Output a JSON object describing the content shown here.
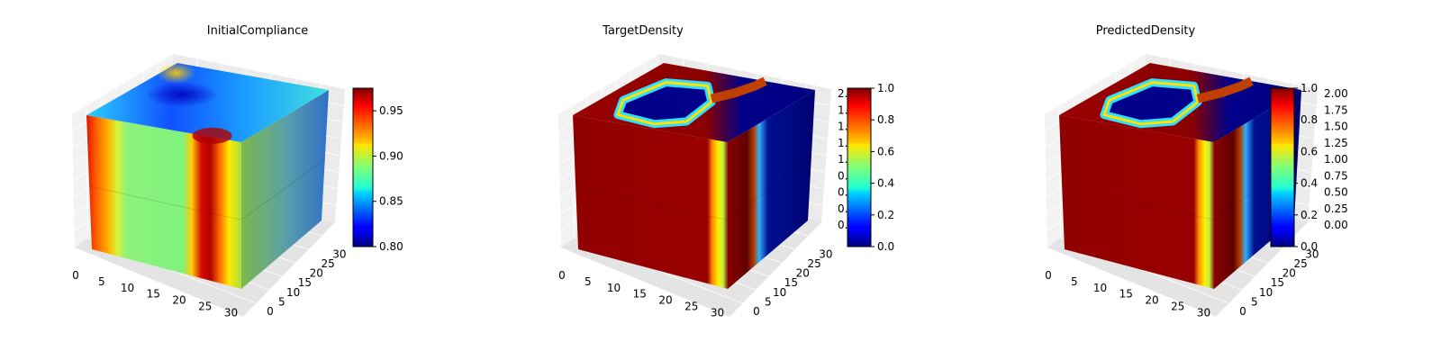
{
  "chart_data": [
    {
      "type": "voxels-3d",
      "title": "InitialCompliance",
      "xlabel": "",
      "ylabel": "",
      "zlabel": "",
      "x_ticks": [
        "0",
        "5",
        "10",
        "15",
        "20",
        "25",
        "30"
      ],
      "y_ticks": [
        "0",
        "5",
        "10",
        "15",
        "20",
        "25",
        "30"
      ],
      "z_ticks": [],
      "xlim": [
        0,
        32
      ],
      "ylim": [
        0,
        32
      ],
      "zlim": [
        0,
        2
      ],
      "field": "compliance",
      "colormap": "jet",
      "colorbar": {
        "min": 0.8,
        "max": 0.975,
        "ticks": [
          "0.80",
          "0.85",
          "0.90",
          "0.95"
        ]
      },
      "grid": true
    },
    {
      "type": "voxels-3d",
      "title": "TargetDensity",
      "xlabel": "",
      "ylabel": "",
      "zlabel": "",
      "x_ticks": [
        "0",
        "5",
        "10",
        "15",
        "20",
        "25",
        "30"
      ],
      "y_ticks": [
        "0",
        "5",
        "10",
        "15",
        "20",
        "25",
        "30"
      ],
      "z_ticks": [
        "0.00",
        "0.25",
        "0.50",
        "0.75",
        "1.00",
        "1.25",
        "1.50",
        "1.75",
        "2.00"
      ],
      "xlim": [
        0,
        32
      ],
      "ylim": [
        0,
        32
      ],
      "zlim": [
        0,
        2
      ],
      "field": "density",
      "colormap": "jet",
      "colorbar": {
        "min": 0.0,
        "max": 1.0,
        "ticks": [
          "0.0",
          "0.2",
          "0.4",
          "0.6",
          "0.8",
          "1.0"
        ]
      },
      "grid": true
    },
    {
      "type": "voxels-3d",
      "title": "PredictedDensity",
      "xlabel": "",
      "ylabel": "",
      "zlabel": "",
      "x_ticks": [
        "0",
        "5",
        "10",
        "15",
        "20",
        "25",
        "30"
      ],
      "y_ticks": [
        "0",
        "5",
        "10",
        "15",
        "20",
        "25",
        "30"
      ],
      "z_ticks": [
        "0.00",
        "0.25",
        "0.50",
        "0.75",
        "1.00",
        "1.25",
        "1.50",
        "1.75",
        "2.00"
      ],
      "xlim": [
        0,
        32
      ],
      "ylim": [
        0,
        32
      ],
      "zlim": [
        0,
        2
      ],
      "field": "density",
      "colormap": "jet",
      "colorbar": {
        "min": 0.0,
        "max": 1.0,
        "ticks": [
          "0.0",
          "0.2",
          "0.4",
          "0.6",
          "0.8",
          "1.0"
        ]
      },
      "grid": true
    }
  ]
}
